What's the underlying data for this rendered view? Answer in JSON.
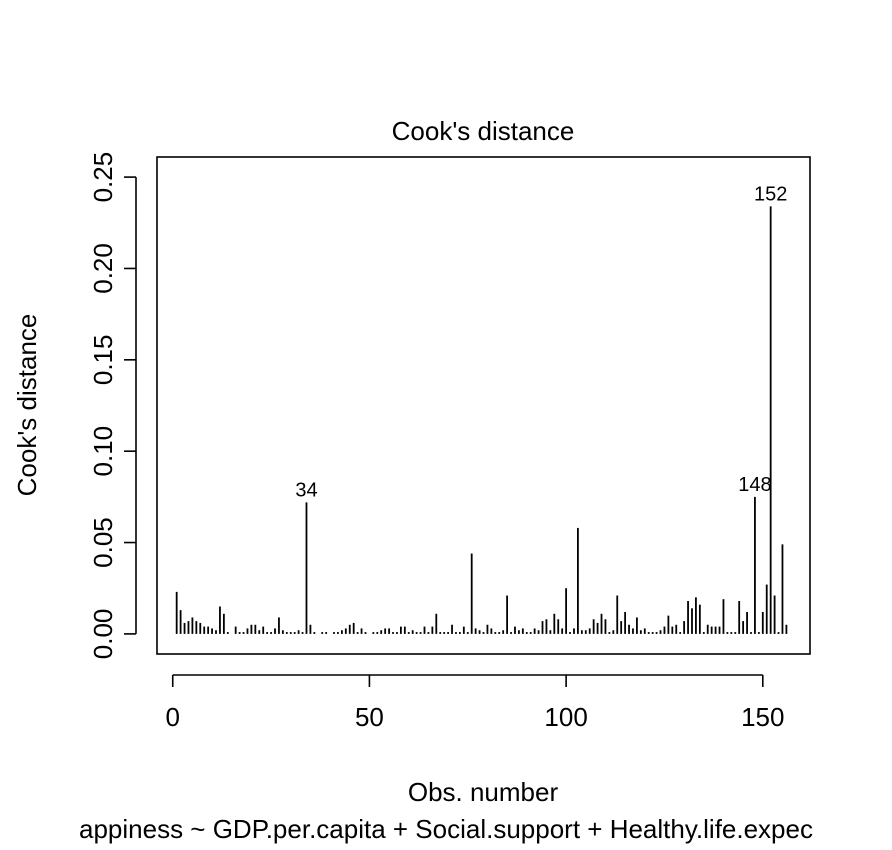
{
  "chart_data": {
    "type": "bar",
    "title": "Cook's distance",
    "xlabel": "Obs. number",
    "ylabel": "Cook's distance",
    "subtitle": "appiness ~ GDP.per.capita + Social.support + Healthy.life.expec",
    "xlim": [
      -4,
      162
    ],
    "ylim": [
      -0.011,
      0.261
    ],
    "x_ticks": [
      0,
      50,
      100,
      150
    ],
    "x_tick_labels": [
      "0",
      "50",
      "100",
      "150"
    ],
    "y_ticks": [
      0,
      0.05,
      0.1,
      0.15,
      0.2,
      0.25
    ],
    "y_tick_labels": [
      "0.00",
      "0.05",
      "0.10",
      "0.15",
      "0.20",
      "0.25"
    ],
    "grid": false,
    "x": [
      1,
      2,
      3,
      4,
      5,
      6,
      7,
      8,
      9,
      10,
      11,
      12,
      13,
      14,
      15,
      16,
      17,
      18,
      19,
      20,
      21,
      22,
      23,
      24,
      25,
      26,
      27,
      28,
      29,
      30,
      31,
      32,
      33,
      34,
      35,
      36,
      37,
      38,
      39,
      40,
      41,
      42,
      43,
      44,
      45,
      46,
      47,
      48,
      49,
      50,
      51,
      52,
      53,
      54,
      55,
      56,
      57,
      58,
      59,
      60,
      61,
      62,
      63,
      64,
      65,
      66,
      67,
      68,
      69,
      70,
      71,
      72,
      73,
      74,
      75,
      76,
      77,
      78,
      79,
      80,
      81,
      82,
      83,
      84,
      85,
      86,
      87,
      88,
      89,
      90,
      91,
      92,
      93,
      94,
      95,
      96,
      97,
      98,
      99,
      100,
      101,
      102,
      103,
      104,
      105,
      106,
      107,
      108,
      109,
      110,
      111,
      112,
      113,
      114,
      115,
      116,
      117,
      118,
      119,
      120,
      121,
      122,
      123,
      124,
      125,
      126,
      127,
      128,
      129,
      130,
      131,
      132,
      133,
      134,
      135,
      136,
      137,
      138,
      139,
      140,
      141,
      142,
      143,
      144,
      145,
      146,
      147,
      148,
      149,
      150,
      151,
      152,
      153,
      154,
      155,
      156
    ],
    "values": [
      0.023,
      0.013,
      0.006,
      0.007,
      0.009,
      0.007,
      0.006,
      0.004,
      0.004,
      0.003,
      0.002,
      0.015,
      0.011,
      0.001,
      0.0,
      0.004,
      0.001,
      0.001,
      0.003,
      0.005,
      0.005,
      0.002,
      0.004,
      0.001,
      0.001,
      0.003,
      0.009,
      0.002,
      0.001,
      0.001,
      0.001,
      0.002,
      0.001,
      0.072,
      0.005,
      0.001,
      0.0,
      0.001,
      0.001,
      0.0,
      0.001,
      0.001,
      0.002,
      0.003,
      0.005,
      0.006,
      0.001,
      0.003,
      0.001,
      0.0,
      0.001,
      0.001,
      0.002,
      0.003,
      0.003,
      0.001,
      0.001,
      0.004,
      0.004,
      0.001,
      0.002,
      0.001,
      0.001,
      0.004,
      0.001,
      0.004,
      0.011,
      0.001,
      0.001,
      0.001,
      0.005,
      0.001,
      0.001,
      0.004,
      0.001,
      0.044,
      0.003,
      0.002,
      0.001,
      0.005,
      0.003,
      0.001,
      0.001,
      0.002,
      0.021,
      0.001,
      0.004,
      0.002,
      0.003,
      0.001,
      0.001,
      0.003,
      0.002,
      0.007,
      0.008,
      0.002,
      0.011,
      0.008,
      0.003,
      0.025,
      0.001,
      0.003,
      0.058,
      0.002,
      0.002,
      0.003,
      0.008,
      0.006,
      0.011,
      0.008,
      0.001,
      0.002,
      0.021,
      0.007,
      0.012,
      0.005,
      0.003,
      0.009,
      0.002,
      0.003,
      0.001,
      0.001,
      0.001,
      0.002,
      0.004,
      0.01,
      0.004,
      0.005,
      0.001,
      0.007,
      0.018,
      0.014,
      0.02,
      0.016,
      0.001,
      0.005,
      0.004,
      0.004,
      0.004,
      0.019,
      0.001,
      0.001,
      0.001,
      0.018,
      0.007,
      0.012,
      0.001,
      0.075,
      0.001,
      0.012,
      0.027,
      0.234,
      0.021,
      0.001,
      0.049,
      0.005
    ],
    "annotations": [
      {
        "label": "34",
        "x": 34
      },
      {
        "label": "148",
        "x": 148
      },
      {
        "label": "152",
        "x": 152
      }
    ]
  }
}
